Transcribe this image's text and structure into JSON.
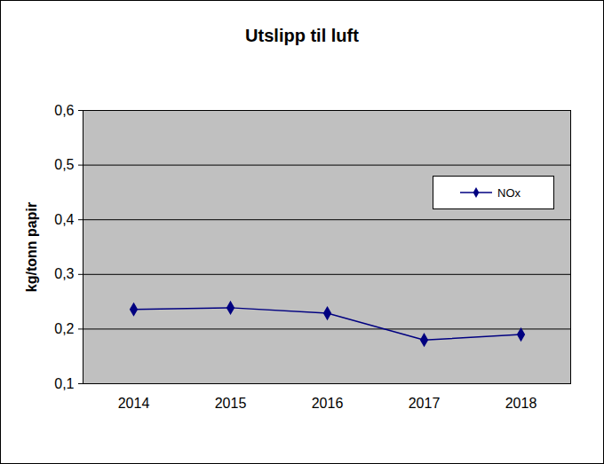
{
  "chart_data": {
    "type": "line",
    "title": "Utslipp til luft",
    "y_label": "kg/tonn papir",
    "categories": [
      "2014",
      "2015",
      "2016",
      "2017",
      "2018"
    ],
    "series": [
      {
        "name": "NOx",
        "color": "#000080",
        "marker": "diamond",
        "values": [
          0.236,
          0.239,
          0.229,
          0.18,
          0.19
        ]
      }
    ],
    "ylim": [
      0.1,
      0.6
    ],
    "yticks": [
      {
        "value": 0.1,
        "label": "0,1"
      },
      {
        "value": 0.2,
        "label": "0,2"
      },
      {
        "value": 0.3,
        "label": "0,3"
      },
      {
        "value": 0.4,
        "label": "0,4"
      },
      {
        "value": 0.5,
        "label": "0,5"
      },
      {
        "value": 0.6,
        "label": "0,6"
      }
    ],
    "grid": true,
    "legend": "upper right"
  }
}
